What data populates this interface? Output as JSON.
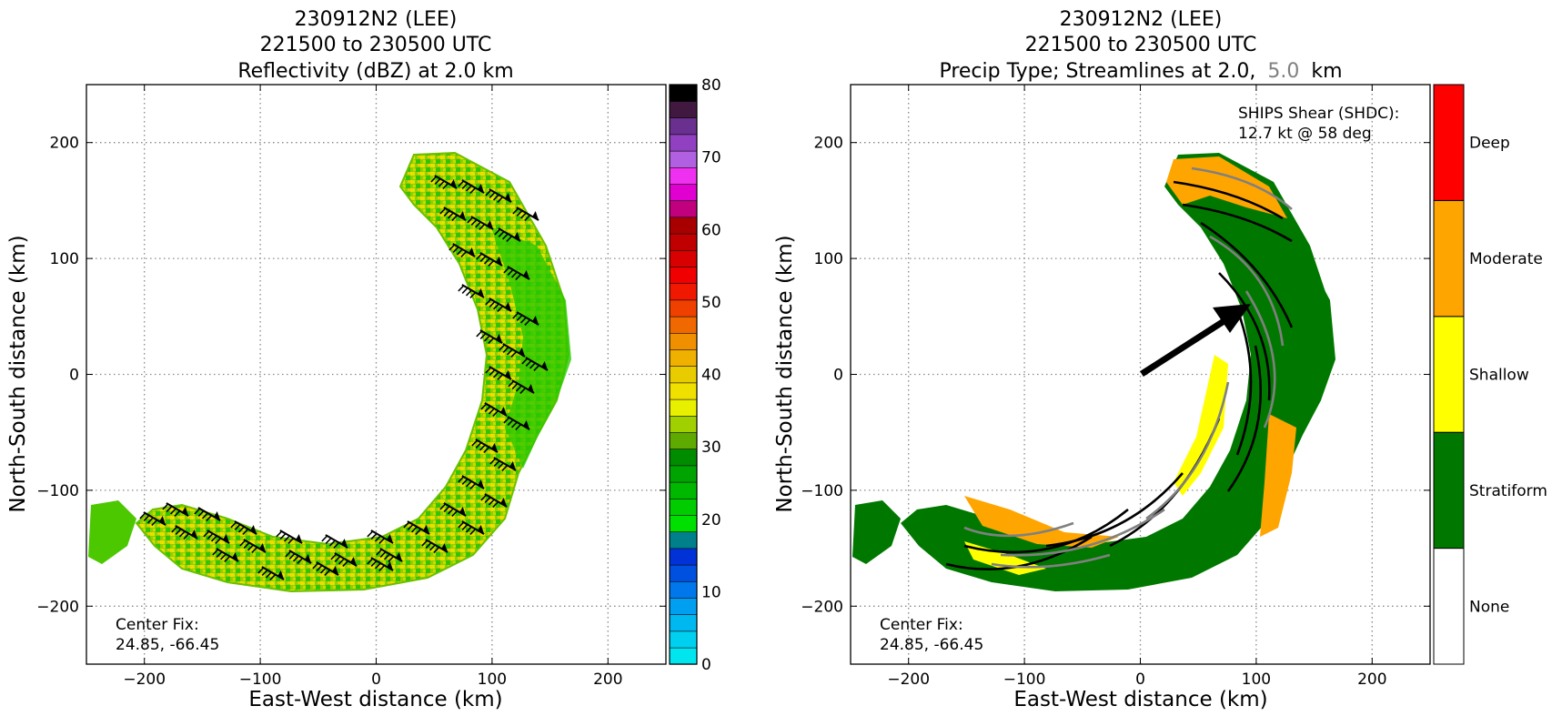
{
  "chart_data": [
    {
      "type": "heatmap",
      "title_lines": [
        "230912N2 (LEE)",
        "221500 to 230500 UTC",
        "Reflectivity (dBZ) at 2.0 km"
      ],
      "xlabel": "East-West distance (km)",
      "ylabel": "North-South distance (km)",
      "xlim": [
        -250,
        250
      ],
      "ylim": [
        -250,
        250
      ],
      "xticks": [
        -200,
        -100,
        0,
        100,
        200
      ],
      "yticks": [
        -200,
        -100,
        0,
        100,
        200
      ],
      "xtick_labels": [
        "−200",
        "−100",
        "0",
        "100",
        "200"
      ],
      "ytick_labels": [
        "−200",
        "−100",
        "0",
        "100",
        "200"
      ],
      "grid": true,
      "annotation": {
        "line1": "Center Fix:",
        "line2": "24.85, -66.45"
      },
      "colorbar": {
        "min": 0,
        "max": 80,
        "step": 2.5,
        "ticks": [
          0,
          10,
          20,
          30,
          40,
          50,
          60,
          70,
          80
        ],
        "tick_labels": [
          "0",
          "10",
          "20",
          "30",
          "40",
          "50",
          "60",
          "70",
          "80"
        ],
        "colors": [
          "#00e5ee",
          "#00d0f0",
          "#00b8f0",
          "#009ff0",
          "#0078ec",
          "#0050e0",
          "#0032d8",
          "#00808a",
          "#00e000",
          "#00cc00",
          "#00b800",
          "#00a400",
          "#008c00",
          "#5faa00",
          "#a0d000",
          "#e8f000",
          "#f0e000",
          "#e8cc00",
          "#f0b000",
          "#f09000",
          "#f06800",
          "#f04000",
          "#f01800",
          "#f00000",
          "#d80000",
          "#c00000",
          "#a80000",
          "#c0007c",
          "#e000d0",
          "#f030f0",
          "#b060e0",
          "#9040c0",
          "#6a3090",
          "#401840",
          "#000000"
        ]
      },
      "wind_barbs": true,
      "echo_region": "curved rainband arc"
    },
    {
      "type": "heatmap",
      "title_lines": [
        "230912N2 (LEE)",
        "221500 to 230500 UTC",
        "Precip Type; Streamlines at 2.0,",
        "5.0",
        "km"
      ],
      "xlabel": "East-West distance (km)",
      "ylabel": "North-South distance (km)",
      "xlim": [
        -250,
        250
      ],
      "ylim": [
        -250,
        250
      ],
      "xticks": [
        -200,
        -100,
        0,
        100,
        200
      ],
      "yticks": [
        -200,
        -100,
        0,
        100,
        200
      ],
      "xtick_labels": [
        "−200",
        "−100",
        "0",
        "100",
        "200"
      ],
      "ytick_labels": [
        "−200",
        "−100",
        "0",
        "100",
        "200"
      ],
      "grid": true,
      "annotation": {
        "line1": "Center Fix:",
        "line2": "24.85, -66.45"
      },
      "shear_annotation": {
        "line1": "SHIPS Shear (SHDC):",
        "line2": "12.7 kt @ 58 deg"
      },
      "shear": {
        "speed_kt": 12.7,
        "direction_deg": 58
      },
      "categories": [
        "None",
        "Stratiform",
        "Shallow",
        "Moderate",
        "Deep"
      ],
      "category_colors": [
        "#ffffff",
        "#007800",
        "#ffff00",
        "#ffa500",
        "#ff0000"
      ],
      "streamline_colors": {
        "2.0 km": "#000000",
        "5.0 km": "#808080"
      }
    }
  ]
}
